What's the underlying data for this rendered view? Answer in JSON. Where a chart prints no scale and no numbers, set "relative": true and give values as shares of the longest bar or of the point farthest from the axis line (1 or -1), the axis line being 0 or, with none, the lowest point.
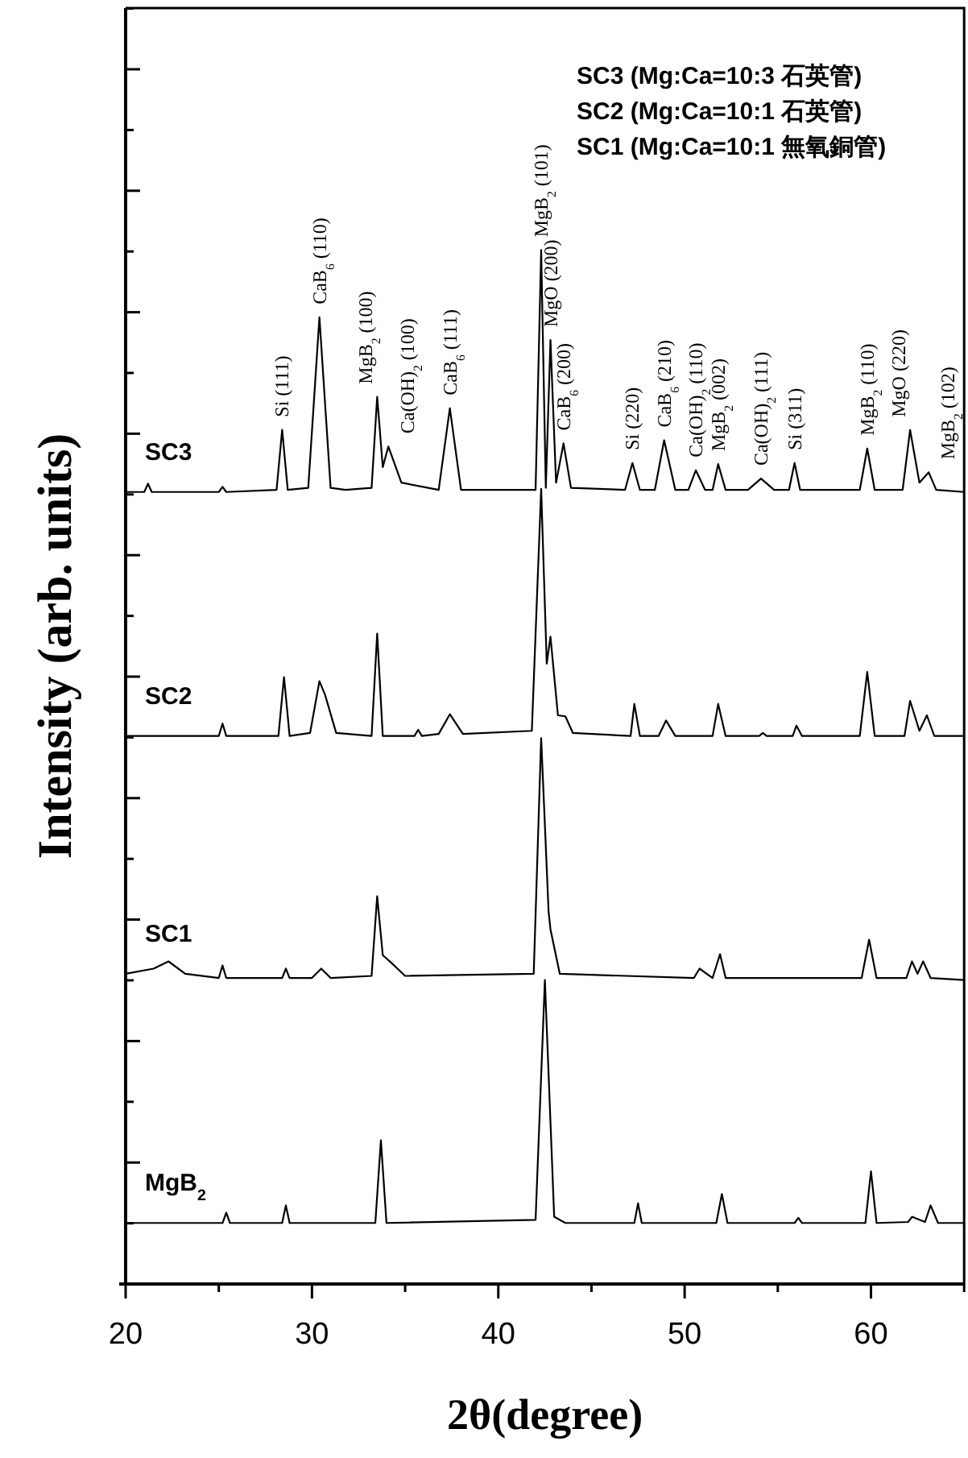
{
  "chart_data": {
    "type": "line",
    "relative": true,
    "legend": "left",
    "xlabel": "2θ(degree)",
    "ylabel": "Intensity (arb. units)",
    "xlim": [
      20,
      65
    ],
    "xticks": [
      20,
      {
        "value": 25,
        "label": null
      },
      30,
      {
        "value": 35,
        "label": null
      },
      40,
      {
        "value": 45,
        "label": null
      },
      50,
      {
        "value": 55,
        "label": null
      },
      60,
      {
        "value": 65,
        "label": null
      }
    ],
    "series": [
      {
        "name": "SC3",
        "color": "#000000",
        "x": [
          20,
          21.0,
          21.2,
          21.4,
          25.0,
          25.2,
          25.4,
          28.1,
          28.4,
          28.7,
          29.8,
          30.4,
          31.0,
          31.8,
          33.2,
          33.5,
          33.8,
          34.1,
          34.8,
          36.8,
          37.4,
          38.0,
          42.0,
          42.3,
          42.55,
          42.8,
          43.1,
          43.5,
          43.9,
          46.8,
          47.2,
          47.6,
          48.4,
          48.9,
          49.5,
          50.2,
          50.6,
          51.1,
          51.5,
          51.8,
          52.2,
          53.4,
          54.1,
          54.8,
          55.6,
          55.9,
          56.2,
          59.4,
          59.8,
          60.2,
          61.7,
          62.1,
          62.6,
          63.1,
          63.5,
          65
        ],
        "values": [
          0.766,
          0.766,
          0.774,
          0.766,
          0.766,
          0.771,
          0.766,
          0.768,
          0.826,
          0.768,
          0.77,
          0.935,
          0.77,
          0.768,
          0.77,
          0.858,
          0.79,
          0.81,
          0.775,
          0.768,
          0.847,
          0.768,
          0.768,
          1.0,
          0.77,
          0.913,
          0.775,
          0.813,
          0.77,
          0.768,
          0.794,
          0.768,
          0.768,
          0.816,
          0.768,
          0.768,
          0.787,
          0.768,
          0.768,
          0.793,
          0.768,
          0.768,
          0.779,
          0.768,
          0.768,
          0.794,
          0.768,
          0.768,
          0.808,
          0.768,
          0.768,
          0.826,
          0.775,
          0.785,
          0.768,
          0.766
        ]
      },
      {
        "name": "SC2",
        "color": "#000000",
        "x": [
          20,
          25.0,
          25.2,
          25.4,
          28.2,
          28.5,
          28.8,
          29.9,
          30.4,
          30.7,
          31.3,
          33.2,
          33.5,
          33.8,
          35.5,
          35.7,
          35.9,
          36.8,
          37.4,
          38.1,
          41.8,
          42.3,
          42.6,
          42.8,
          43.2,
          43.6,
          44.0,
          47.1,
          47.3,
          47.6,
          48.6,
          49.0,
          49.5,
          51.5,
          51.8,
          52.2,
          54.0,
          54.2,
          54.4,
          55.8,
          56.0,
          56.3,
          59.4,
          59.8,
          60.2,
          61.8,
          62.1,
          62.6,
          63.0,
          63.4,
          65
        ],
        "values": [
          0.53,
          0.53,
          0.542,
          0.53,
          0.53,
          0.587,
          0.53,
          0.533,
          0.583,
          0.57,
          0.533,
          0.53,
          0.629,
          0.53,
          0.53,
          0.536,
          0.53,
          0.532,
          0.551,
          0.532,
          0.535,
          0.769,
          0.6,
          0.626,
          0.55,
          0.549,
          0.533,
          0.53,
          0.561,
          0.53,
          0.53,
          0.545,
          0.53,
          0.53,
          0.561,
          0.53,
          0.53,
          0.533,
          0.53,
          0.53,
          0.54,
          0.53,
          0.53,
          0.592,
          0.53,
          0.53,
          0.564,
          0.535,
          0.55,
          0.53,
          0.53
        ]
      },
      {
        "name": "SC1",
        "color": "#000000",
        "x": [
          20,
          21.5,
          22.3,
          23.2,
          25.0,
          25.2,
          25.4,
          28.4,
          28.6,
          28.8,
          30.0,
          30.5,
          31.0,
          33.2,
          33.5,
          33.8,
          34.3,
          35.0,
          41.9,
          42.3,
          42.7,
          42.8,
          43.3,
          50.5,
          50.8,
          51.5,
          51.9,
          52.2,
          59.5,
          59.9,
          60.3,
          61.9,
          62.2,
          62.5,
          62.8,
          63.2,
          65
        ],
        "values": [
          0.3,
          0.305,
          0.312,
          0.3,
          0.296,
          0.308,
          0.296,
          0.296,
          0.305,
          0.296,
          0.296,
          0.305,
          0.296,
          0.298,
          0.375,
          0.318,
          0.31,
          0.298,
          0.3,
          0.528,
          0.36,
          0.343,
          0.3,
          0.296,
          0.305,
          0.296,
          0.319,
          0.296,
          0.296,
          0.333,
          0.296,
          0.296,
          0.312,
          0.3,
          0.312,
          0.296,
          0.294
        ]
      },
      {
        "name": "MgB$_{2}$",
        "color": "#000000",
        "x": [
          20,
          25.2,
          25.4,
          25.6,
          28.4,
          28.6,
          28.8,
          33.4,
          33.7,
          34.0,
          42.0,
          42.5,
          43.0,
          43.6,
          47.3,
          47.5,
          47.7,
          51.7,
          52.0,
          52.3,
          55.9,
          56.1,
          56.3,
          59.7,
          60.0,
          60.3,
          62.0,
          62.2,
          62.9,
          63.2,
          63.6,
          65
        ],
        "values": [
          0.059,
          0.059,
          0.069,
          0.059,
          0.059,
          0.076,
          0.059,
          0.059,
          0.139,
          0.059,
          0.062,
          0.294,
          0.065,
          0.059,
          0.059,
          0.078,
          0.059,
          0.059,
          0.087,
          0.059,
          0.059,
          0.064,
          0.059,
          0.059,
          0.109,
          0.059,
          0.06,
          0.065,
          0.06,
          0.076,
          0.059,
          0.059
        ]
      }
    ],
    "annotations": [
      "SC3 (Mg:Ca=10:3 石英管)",
      "SC2 (Mg:Ca=10:1 石英管)",
      "SC1 (Mg:Ca=10:1 無氧銅管)",
      {
        "text": "Si (111)",
        "x": 28.4,
        "y": 0.826
      },
      {
        "text": "CaB$_{6}$ (110)",
        "x": 30.4,
        "y": 0.935
      },
      {
        "text": "MgB$_{2}$ (100)",
        "x": 33.5,
        "y": 0.858
      },
      {
        "text": "Ca(OH)$_{2}$ (100)",
        "x": 34.1,
        "y": 0.81
      },
      {
        "text": "CaB$_{6}$ (111)",
        "x": 37.4,
        "y": 0.847
      },
      {
        "text": "MgB$_{2}$ (101)",
        "x": 42.3,
        "y": 1.0
      },
      {
        "text": "MgO (200)",
        "x": 42.8,
        "y": 0.913
      },
      {
        "text": "CaB$_{6}$ (200)",
        "x": 43.5,
        "y": 0.813
      },
      {
        "text": "Si (220)",
        "x": 47.2,
        "y": 0.794
      },
      {
        "text": "CaB$_{6}$ (210)",
        "x": 48.9,
        "y": 0.816
      },
      {
        "text": "Ca(OH)$_{2}$ (110)",
        "x": 50.6,
        "y": 0.787
      },
      {
        "text": "MgB$_{2}$ (002)",
        "x": 51.8,
        "y": 0.793
      },
      {
        "text": "Ca(OH)$_{2}$ (111)",
        "x": 54.1,
        "y": 0.779
      },
      {
        "text": "Si (311)",
        "x": 55.9,
        "y": 0.794
      },
      {
        "text": "MgB$_{2}$ (110)",
        "x": 59.8,
        "y": 0.808
      },
      {
        "text": "MgO (220)",
        "x": 62.1,
        "y": 0.826
      },
      {
        "text": "MgB$_{2}$ (102)",
        "x": 63.1,
        "y": 0.785
      }
    ]
  }
}
